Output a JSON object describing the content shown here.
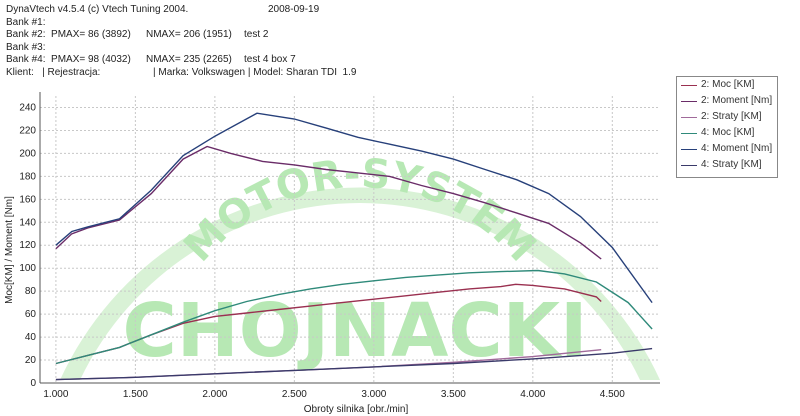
{
  "header": {
    "line1": "DynaVtech v4.5.4 (c) Vtech Tuning 2004.",
    "date": "2008-09-19",
    "bank1": "Bank #1:",
    "bank2_pmax": "Bank #2:  PMAX= 86 (3892)",
    "bank2_nmax": "NMAX= 206 (1951)",
    "bank2_test": "test 2",
    "bank3": "Bank #3:",
    "bank4_pmax": "Bank #4:  PMAX= 98 (4032)",
    "bank4_nmax": "NMAX= 235 (2265)",
    "bank4_test": "test 4 box 7",
    "klient": "Klient:   | Rejestracja:",
    "marka": "| Marka: Volkswagen | Model: Sharan TDI  1.9"
  },
  "watermark": {
    "arc_text": "MOTOR-SYSTEM",
    "big_text": "CHOJNACKI"
  },
  "chart_data": {
    "type": "line",
    "title": "",
    "xlabel": "Obroty silnika [obr./min]",
    "ylabel": "Moc[KM] / Moment [Nm]",
    "xlim": [
      900,
      4800
    ],
    "ylim": [
      0,
      250
    ],
    "xticks": [
      1000,
      1500,
      2000,
      2500,
      3000,
      3500,
      4000,
      4500
    ],
    "xtick_labels": [
      "1.000",
      "1.500",
      "2.000",
      "2.500",
      "3.000",
      "3.500",
      "4.000",
      "4.500"
    ],
    "yticks": [
      0,
      20,
      40,
      60,
      80,
      100,
      120,
      140,
      160,
      180,
      200,
      220,
      240
    ],
    "grid": true,
    "legend_position": "top-right",
    "series": [
      {
        "name": "2: Moc [KM]",
        "color": "#9a3050",
        "x": [
          1000,
          1200,
          1400,
          1600,
          1800,
          2000,
          2200,
          2400,
          2600,
          2800,
          3000,
          3200,
          3400,
          3600,
          3800,
          3892,
          4000,
          4200,
          4400,
          4430
        ],
        "y": [
          17,
          24,
          31,
          42,
          52,
          58,
          61,
          64,
          67,
          70,
          73,
          76,
          79,
          82,
          84,
          86,
          85,
          82,
          75,
          71
        ]
      },
      {
        "name": "2: Moment [Nm]",
        "color": "#6a2c68",
        "x": [
          1000,
          1100,
          1200,
          1400,
          1600,
          1800,
          1951,
          2100,
          2300,
          2500,
          2700,
          2900,
          3100,
          3300,
          3500,
          3700,
          3900,
          4100,
          4300,
          4430
        ],
        "y": [
          117,
          130,
          135,
          142,
          165,
          195,
          206,
          200,
          193,
          190,
          186,
          183,
          180,
          172,
          165,
          157,
          148,
          139,
          122,
          108
        ]
      },
      {
        "name": "2: Straty [KM]",
        "color": "#a06a9a",
        "x": [
          1000,
          1500,
          2000,
          2500,
          3000,
          3500,
          4000,
          4430
        ],
        "y": [
          3,
          5,
          8,
          11,
          14,
          18,
          23,
          29
        ]
      },
      {
        "name": "4: Moc [KM]",
        "color": "#2f8a7a",
        "x": [
          1000,
          1200,
          1400,
          1600,
          1800,
          2000,
          2200,
          2400,
          2600,
          2800,
          3000,
          3200,
          3400,
          3600,
          3800,
          4032,
          4200,
          4400,
          4600,
          4750
        ],
        "y": [
          17,
          24,
          31,
          42,
          53,
          63,
          71,
          77,
          82,
          86,
          89,
          92,
          94,
          96,
          97,
          98,
          95,
          88,
          70,
          47
        ]
      },
      {
        "name": "4: Moment [Nm]",
        "color": "#27407a",
        "x": [
          1000,
          1100,
          1200,
          1400,
          1600,
          1800,
          2000,
          2265,
          2500,
          2700,
          2900,
          3100,
          3300,
          3500,
          3700,
          3900,
          4100,
          4300,
          4500,
          4750
        ],
        "y": [
          120,
          132,
          136,
          143,
          168,
          198,
          215,
          235,
          230,
          222,
          214,
          208,
          202,
          195,
          186,
          177,
          165,
          145,
          118,
          70
        ]
      },
      {
        "name": "4: Straty [KM]",
        "color": "#3a3a6a",
        "x": [
          1000,
          1500,
          2000,
          2500,
          3000,
          3500,
          4000,
          4500,
          4750
        ],
        "y": [
          3,
          5,
          8,
          11,
          14,
          17,
          21,
          26,
          30
        ]
      }
    ]
  }
}
